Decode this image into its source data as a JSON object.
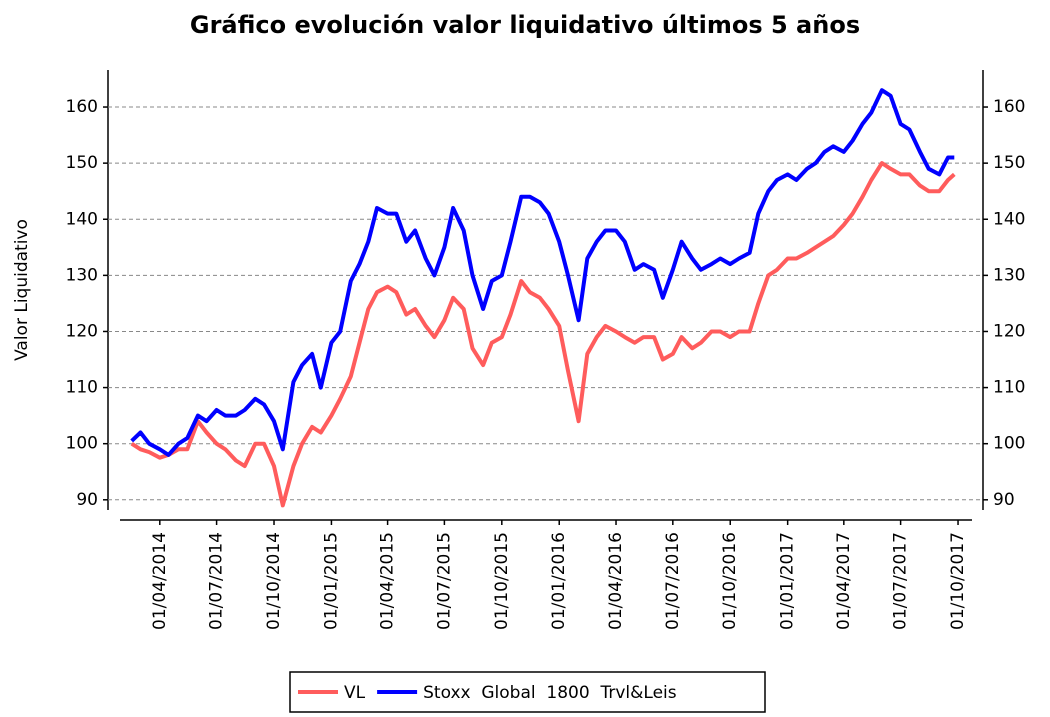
{
  "chart_data": {
    "type": "line",
    "title": "Gráfico evolución valor liquidativo últimos 5 años",
    "y_label": "Valor Liquidativo",
    "x": [
      "15/02/2014",
      "01/03/2014",
      "15/03/2014",
      "01/04/2014",
      "15/04/2014",
      "01/05/2014",
      "15/05/2014",
      "01/06/2014",
      "15/06/2014",
      "01/07/2014",
      "15/07/2014",
      "01/08/2014",
      "15/08/2014",
      "01/09/2014",
      "15/09/2014",
      "01/10/2014",
      "15/10/2014",
      "01/11/2014",
      "15/11/2014",
      "01/12/2014",
      "15/12/2014",
      "01/01/2015",
      "15/01/2015",
      "01/02/2015",
      "15/02/2015",
      "01/03/2015",
      "15/03/2015",
      "01/04/2015",
      "15/04/2015",
      "01/05/2015",
      "15/05/2015",
      "01/06/2015",
      "15/06/2015",
      "01/07/2015",
      "15/07/2015",
      "01/08/2015",
      "15/08/2015",
      "01/09/2015",
      "15/09/2015",
      "01/10/2015",
      "15/10/2015",
      "01/11/2015",
      "15/11/2015",
      "01/12/2015",
      "15/12/2015",
      "01/01/2016",
      "15/01/2016",
      "01/02/2016",
      "15/02/2016",
      "01/03/2016",
      "15/03/2016",
      "01/04/2016",
      "15/04/2016",
      "01/05/2016",
      "15/05/2016",
      "01/06/2016",
      "15/06/2016",
      "01/07/2016",
      "15/07/2016",
      "01/08/2016",
      "15/08/2016",
      "01/09/2016",
      "15/09/2016",
      "01/10/2016",
      "15/10/2016",
      "01/11/2016",
      "15/11/2016",
      "01/12/2016",
      "15/12/2016",
      "01/01/2017",
      "15/01/2017",
      "01/02/2017",
      "15/02/2017",
      "01/03/2017",
      "15/03/2017",
      "01/04/2017",
      "15/04/2017",
      "01/05/2017",
      "15/05/2017",
      "01/06/2017",
      "15/06/2017",
      "01/07/2017",
      "15/07/2017",
      "01/08/2017",
      "15/08/2017",
      "01/09/2017",
      "15/09/2017",
      "25/09/2017"
    ],
    "series": [
      {
        "name": "VL",
        "color": "#ff5c5c",
        "values": [
          100,
          99,
          98.5,
          97.5,
          98,
          99,
          99,
          104,
          102,
          100,
          99,
          97,
          96,
          100,
          100,
          96,
          89,
          96,
          100,
          103,
          102,
          105,
          108,
          112,
          118,
          124,
          127,
          128,
          127,
          123,
          124,
          121,
          119,
          122,
          126,
          124,
          117,
          114,
          118,
          119,
          123,
          129,
          127,
          126,
          124,
          121,
          113,
          104,
          116,
          119,
          121,
          120,
          119,
          118,
          119,
          119,
          115,
          116,
          119,
          117,
          118,
          120,
          120,
          119,
          120,
          120,
          125,
          130,
          131,
          133,
          133,
          134,
          135,
          136,
          137,
          139,
          141,
          144,
          147,
          150,
          149,
          148,
          148,
          146,
          145,
          145,
          147,
          148
        ]
      },
      {
        "name": "Stoxx  Global  1800  Trvl&Leis",
        "color": "#0000ff",
        "axis": "y2",
        "values": [
          100.5,
          102,
          100,
          99,
          98,
          100,
          101,
          105,
          104,
          106,
          105,
          105,
          106,
          108,
          107,
          104,
          99,
          111,
          114,
          116,
          110,
          118,
          120,
          129,
          132,
          136,
          142,
          141,
          141,
          136,
          138,
          133,
          130,
          135,
          142,
          138,
          130,
          124,
          129,
          130,
          136,
          144,
          144,
          143,
          141,
          136,
          130,
          122,
          133,
          136,
          138,
          138,
          136,
          131,
          132,
          131,
          126,
          131,
          136,
          133,
          131,
          132,
          133,
          132,
          133,
          134,
          141,
          145,
          147,
          148,
          147,
          149,
          150,
          152,
          153,
          152,
          154,
          157,
          159,
          163,
          162,
          157,
          156,
          152,
          149,
          148,
          151,
          151
        ]
      }
    ],
    "xlim": [
      "08/01/2014",
      "10/11/2017"
    ],
    "xticks": [
      "01/04/2014",
      "01/07/2014",
      "01/10/2014",
      "01/01/2015",
      "01/04/2015",
      "01/07/2015",
      "01/10/2015",
      "01/01/2016",
      "01/04/2016",
      "01/07/2016",
      "01/10/2016",
      "01/01/2017",
      "01/04/2017",
      "01/07/2017",
      "01/10/2017"
    ],
    "ylim": [
      86.4,
      166.6
    ],
    "yticks": [
      90,
      100,
      110,
      120,
      130,
      140,
      150,
      160
    ],
    "y2lim": [
      86.4,
      166.6
    ],
    "y2ticks": [
      90,
      100,
      110,
      120,
      130,
      140,
      150,
      160
    ],
    "grid": true
  }
}
